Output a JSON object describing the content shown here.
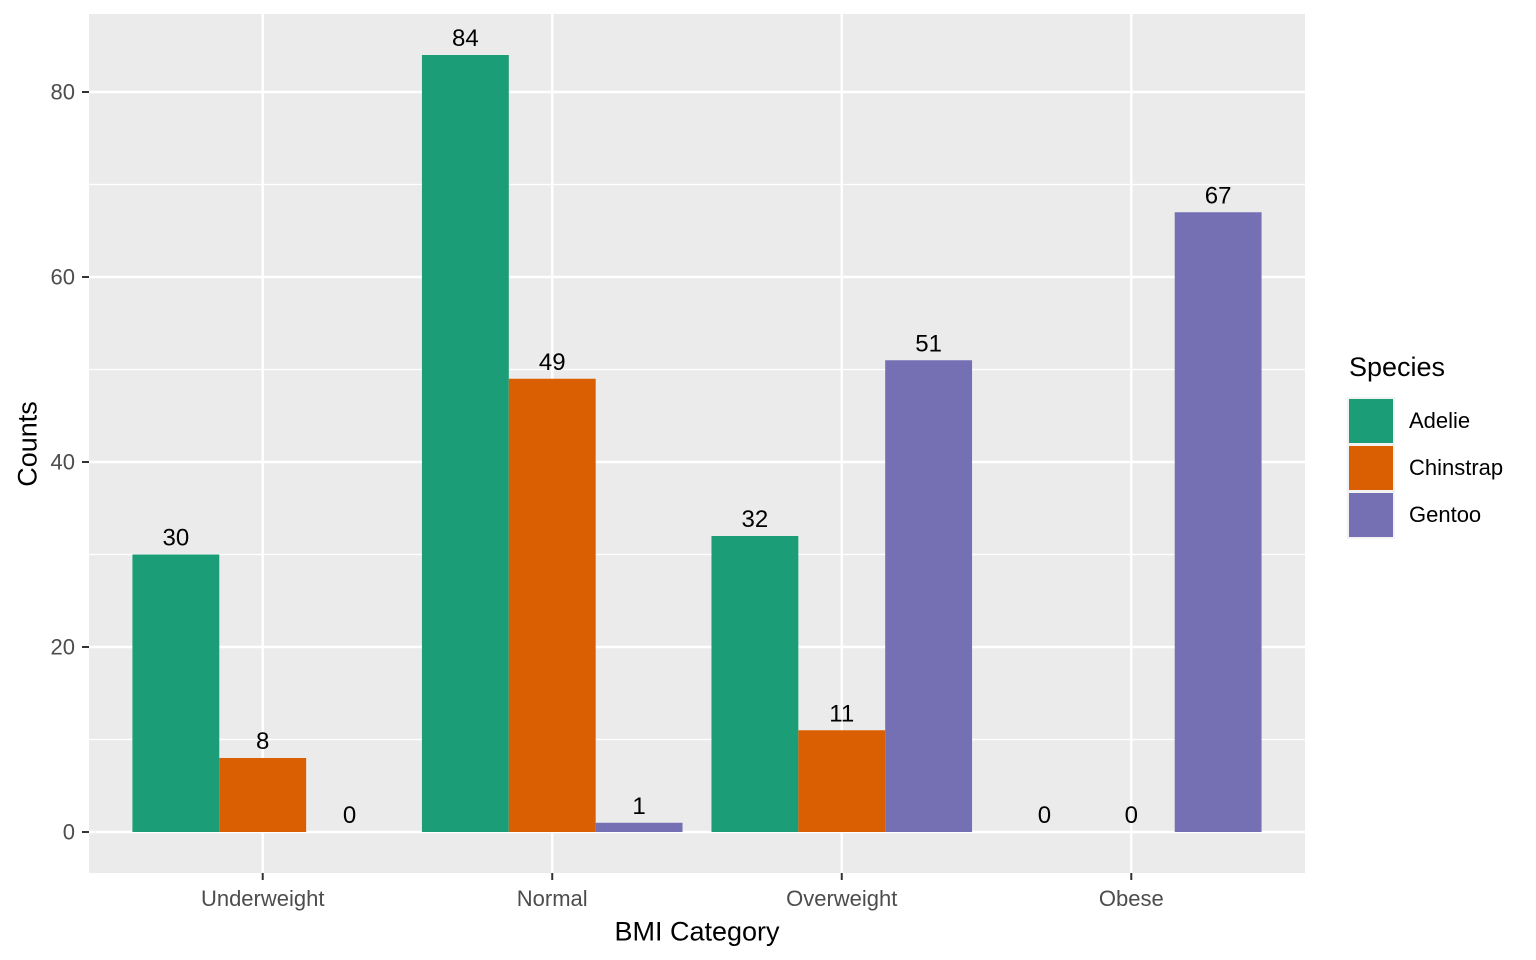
{
  "chart_data": {
    "type": "bar",
    "title": "",
    "xlabel": "BMI Category",
    "ylabel": "Counts",
    "legend_title": "Species",
    "legend_position": "right",
    "categories": [
      "Underweight",
      "Normal",
      "Overweight",
      "Obese"
    ],
    "series": [
      {
        "name": "Adelie",
        "color": "#1B9E77",
        "values": [
          30,
          84,
          32,
          0
        ]
      },
      {
        "name": "Chinstrap",
        "color": "#D95F02",
        "values": [
          8,
          49,
          11,
          0
        ]
      },
      {
        "name": "Gentoo",
        "color": "#7570B3",
        "values": [
          0,
          1,
          51,
          67
        ]
      }
    ],
    "bar_value_labels": [
      [
        "30",
        "84",
        "32",
        "0"
      ],
      [
        "8",
        "49",
        "11",
        "0"
      ],
      [
        "0",
        "1",
        "51",
        "67"
      ]
    ],
    "y_ticks": [
      0,
      20,
      40,
      60,
      80
    ],
    "y_minor_ticks": [
      10,
      30,
      50,
      70
    ],
    "ylim": [
      -4.2,
      88.4
    ],
    "grid": true
  },
  "style": {
    "panel_bg": "#EBEBEB",
    "grid_color": "#FFFFFF",
    "tick_label_color": "#4D4D4D",
    "tick_mark_color": "#333333",
    "axis_title_color": "#000000",
    "value_label_color": "#000000",
    "background": "#FFFFFF"
  }
}
